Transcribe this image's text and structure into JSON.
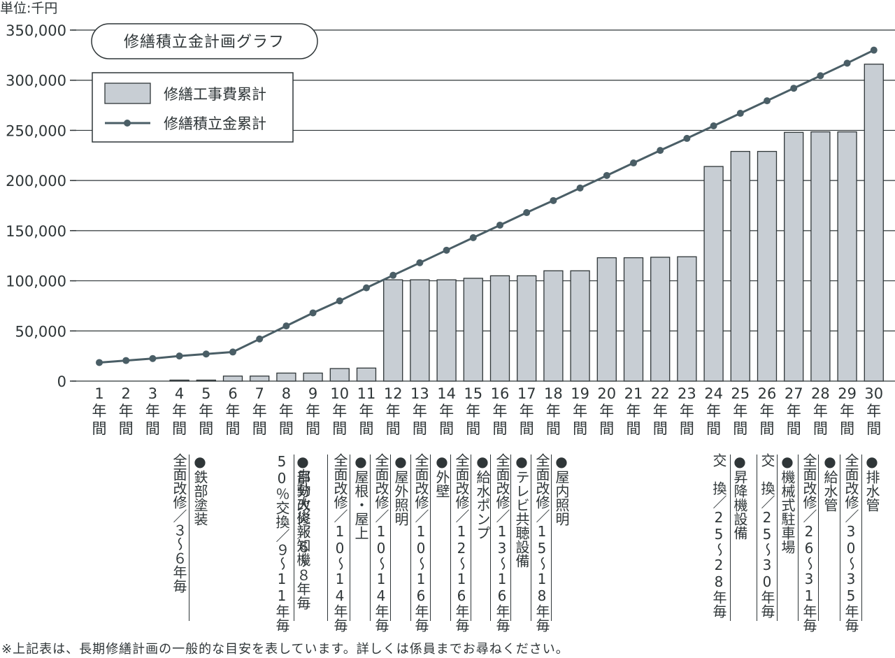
{
  "chart_data": {
    "type": "bar",
    "title": "修繕積立金計画グラフ",
    "unit_label": "単位:千円",
    "ylim": [
      0,
      350000
    ],
    "yticks": [
      "0",
      "50,000",
      "100,000",
      "150,000",
      "200,000",
      "250,000",
      "300,000",
      "350,000"
    ],
    "ytick_values": [
      0,
      50000,
      100000,
      150000,
      200000,
      250000,
      300000,
      350000
    ],
    "grid": true,
    "legend_position": "top-left",
    "categories": [
      "1年間",
      "2年間",
      "3年間",
      "4年間",
      "5年間",
      "6年間",
      "7年間",
      "8年間",
      "9年間",
      "10年間",
      "11年間",
      "12年間",
      "13年間",
      "14年間",
      "15年間",
      "16年間",
      "17年間",
      "18年間",
      "19年間",
      "20年間",
      "21年間",
      "22年間",
      "23年間",
      "24年間",
      "25年間",
      "26年間",
      "27年間",
      "28年間",
      "29年間",
      "30年間"
    ],
    "series": [
      {
        "name": "修繕工事費累計",
        "kind": "bar",
        "color": "#c8ced4",
        "values": [
          0,
          0,
          0,
          1000,
          1000,
          5000,
          5000,
          8000,
          8000,
          12500,
          13000,
          101000,
          101000,
          101000,
          102500,
          105000,
          105000,
          110000,
          110000,
          123000,
          123000,
          123500,
          124000,
          214000,
          229000,
          229000,
          248000,
          248500,
          248500,
          316000
        ]
      },
      {
        "name": "修繕積立金累計",
        "kind": "line",
        "color": "#4a5e66",
        "values": [
          18500,
          20500,
          22500,
          25000,
          27000,
          29000,
          42000,
          55000,
          68000,
          80000,
          93000,
          105500,
          118000,
          130500,
          143000,
          155500,
          168000,
          180000,
          192500,
          205000,
          217500,
          230000,
          242000,
          254500,
          267000,
          279500,
          292000,
          304500,
          317000,
          330000
        ]
      }
    ]
  },
  "work_items": [
    {
      "year": 4,
      "title": "●鉄部塗装",
      "cycle": "全面改修/3〜6年毎"
    },
    {
      "year": 9,
      "title": "●部分改修/6〜8年毎",
      "cycle": "50%交換/9〜11年毎",
      "title_sub": "自動火災報知機"
    },
    {
      "year": 10,
      "title": "",
      "cycle": "全面改修/10〜14年毎"
    },
    {
      "year": 11,
      "title": "●屋根・屋上",
      "cycle": ""
    },
    {
      "year": 12,
      "title": "",
      "cycle": "全面改修/10〜14年毎"
    },
    {
      "year": 13,
      "title": "●屋外照明",
      "cycle": "全面改修/10〜16年毎"
    },
    {
      "year": 15,
      "title": "●外壁",
      "cycle": "全面改修/12〜16年毎"
    },
    {
      "year": 16,
      "title": "●給水ポンプ",
      "cycle": "全面改修/13〜16年毎"
    },
    {
      "year": 18,
      "title": "●テレビ共聴設備",
      "cycle": "全面改修/15〜18年毎"
    },
    {
      "year": 19,
      "title": "●屋内照明",
      "cycle": ""
    },
    {
      "year": 24,
      "title": "●昇降機設備",
      "cycle": "交　換/25〜28年毎"
    },
    {
      "year": 26,
      "title": "●機械式駐車場",
      "cycle": "交　換/25〜30年毎"
    },
    {
      "year": 28,
      "title": "●給水管",
      "cycle": "全面改修/26〜31年毎"
    },
    {
      "year": 30,
      "title": "●排水管",
      "cycle": "全面改修/30〜35年毎"
    }
  ],
  "annotations": {
    "col_texts": [
      "全面改修／３〜６年毎",
      "●鉄部塗装",
      "50％交換／９〜11年毎",
      "●部分改修／６〜８年毎",
      "全面改修／10〜14年毎",
      "●屋根・屋上",
      "全面改修／10〜14年毎",
      "●屋外照明",
      "全面改修／10〜16年毎",
      "●外壁",
      "全面改修／12〜16年毎",
      "●給水ポンプ",
      "全面改修／13〜16年毎",
      "●テレビ共聴設備",
      "全面改修／15〜18年毎",
      "●屋内照明",
      "交　換／25〜28年毎",
      "●昇降機設備",
      "交　換／25〜30年毎",
      "●機械式駐車場",
      "全面改修／26〜31年毎",
      "●給水管",
      "全面改修／30〜35年毎",
      "●排水管"
    ],
    "sub_text": "自動火災報知機"
  },
  "colors": {
    "text": "#2f3638",
    "grid": "#2f3638",
    "bar_fill": "#c8ced4",
    "bar_stroke": "#2f3638",
    "line": "#4a5e66"
  },
  "footnote": "※上記表は、長期修繕計画の一般的な目安を表しています。詳しくは係員までお尋ねください。"
}
